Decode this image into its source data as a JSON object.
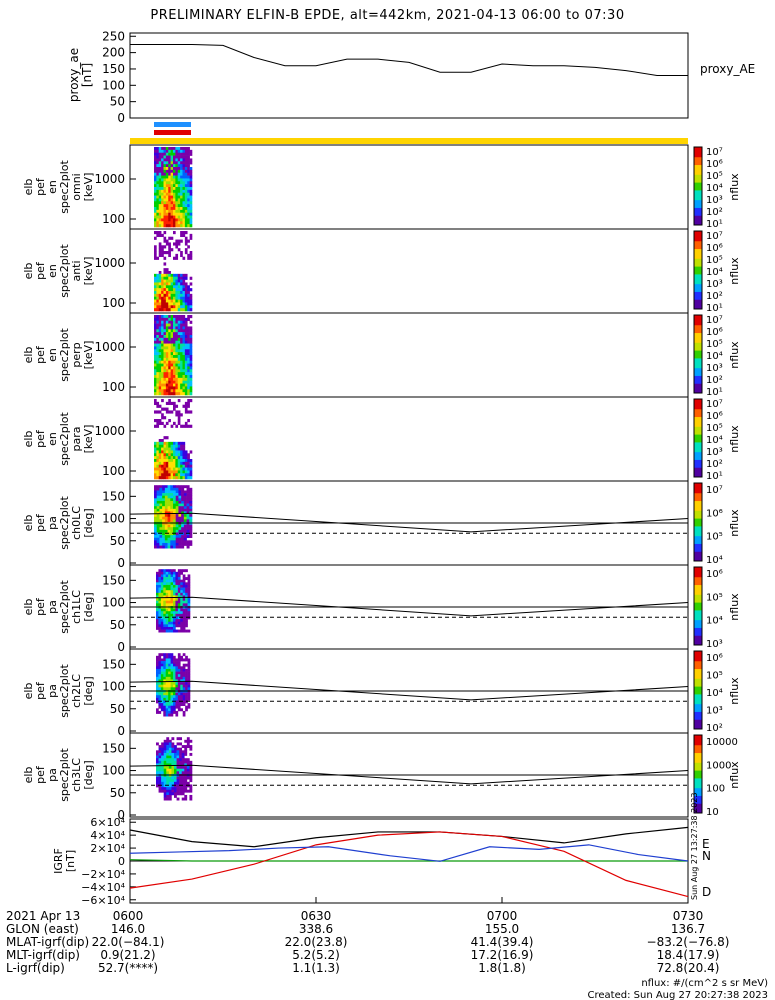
{
  "title": "PRELIMINARY ELFIN-B EPDE, alt=442km, 2021-04-13 06:00 to 07:30",
  "ae_panel": {
    "ylabel": "proxy_ae\n[nT]",
    "legend": "proxy_AE",
    "yticks": [
      "250",
      "200",
      "150",
      "100",
      "50",
      "0"
    ],
    "ylim": [
      0,
      260
    ]
  },
  "spec_panels": [
    {
      "ylabel": "elb\npef\nen\nspec2plot\nomni\n[keV]",
      "yticks": [
        "1000",
        "100"
      ],
      "cbar_ticks": [
        "10⁷",
        "10⁶",
        "10⁵",
        "10⁴",
        "10³",
        "10²",
        "10¹"
      ],
      "cbar_label": "nflux"
    },
    {
      "ylabel": "elb\npef\nen\nspec2plot\nanti\n[keV]",
      "yticks": [
        "1000",
        "100"
      ],
      "cbar_ticks": [
        "10⁷",
        "10⁶",
        "10⁵",
        "10⁴",
        "10³",
        "10²",
        "10¹"
      ],
      "cbar_label": "nflux"
    },
    {
      "ylabel": "elb\npef\nen\nspec2plot\nperp\n[keV]",
      "yticks": [
        "1000",
        "100"
      ],
      "cbar_ticks": [
        "10⁷",
        "10⁶",
        "10⁵",
        "10⁴",
        "10³",
        "10²",
        "10¹"
      ],
      "cbar_label": "nflux"
    },
    {
      "ylabel": "elb\npef\nen\nspec2plot\npara\n[keV]",
      "yticks": [
        "1000",
        "100"
      ],
      "cbar_ticks": [
        "10⁷",
        "10⁶",
        "10⁵",
        "10⁴",
        "10³",
        "10²",
        "10¹"
      ],
      "cbar_label": "nflux"
    }
  ],
  "pa_panels": [
    {
      "ylabel": "elb\npef\npa\nspec2plot\nch0LC\n[deg]",
      "yticks": [
        "150",
        "100",
        "50",
        "0"
      ],
      "cbar_ticks": [
        "10⁷",
        "10⁶",
        "10⁵",
        "10⁴"
      ],
      "cbar_label": "nflux"
    },
    {
      "ylabel": "elb\npef\npa\nspec2plot\nch1LC\n[deg]",
      "yticks": [
        "150",
        "100",
        "50",
        "0"
      ],
      "cbar_ticks": [
        "10⁶",
        "10⁵",
        "10⁴",
        "10³"
      ],
      "cbar_label": "nflux"
    },
    {
      "ylabel": "elb\npef\npa\nspec2plot\nch2LC\n[deg]",
      "yticks": [
        "150",
        "100",
        "50",
        "0"
      ],
      "cbar_ticks": [
        "10⁶",
        "10⁵",
        "10⁴",
        "10³",
        "10²"
      ],
      "cbar_label": "nflux"
    },
    {
      "ylabel": "elb\npef\npa\nspec2plot\nch3LC\n[deg]",
      "yticks": [
        "150",
        "100",
        "50",
        "0"
      ],
      "cbar_ticks": [
        "10000",
        "1000",
        "100",
        "10"
      ],
      "cbar_label": "nflux"
    }
  ],
  "igrf_panel": {
    "ylabel": "IGRF\n[nT]",
    "yticks": [
      "6×10⁴",
      "4×10⁴",
      "2×10⁴",
      "0",
      "−2×10⁴",
      "−4×10⁴",
      "−6×10⁴"
    ],
    "legend": [
      "E",
      "N",
      "D"
    ],
    "side_text": "Sun Aug 27 13:27:38 2023"
  },
  "footer": {
    "rows": [
      {
        "label": "2021 Apr 13",
        "values": [
          "0600",
          "0630",
          "0700",
          "0730"
        ]
      },
      {
        "label": "GLON (east)",
        "values": [
          "146.0",
          "338.6",
          "155.0",
          "136.7"
        ]
      },
      {
        "label": "MLAT-igrf(dip)",
        "values": [
          "22.0(−84.1)",
          "22.0(23.8)",
          "41.4(39.4)",
          "−83.2(−76.8)"
        ]
      },
      {
        "label": "MLT-igrf(dip)",
        "values": [
          "0.9(21.2)",
          "5.2(5.2)",
          "17.2(16.9)",
          "18.4(17.9)"
        ]
      },
      {
        "label": "L-igrf(dip)",
        "values": [
          "52.7(****)",
          "1.1(1.3)",
          "1.8(1.8)",
          "72.8(20.4)"
        ]
      }
    ],
    "unit_note": "nflux: #/(cm^2 s sr MeV)",
    "created": "Created: Sun Aug 27 20:27:38 2023"
  },
  "colors": {
    "yellow": "#ffd400",
    "blue": "#1e90ff",
    "red": "#e00000",
    "igrf_E": "#000000",
    "igrf_N": "#0a9a0a",
    "igrf_D": "#e00000",
    "igrf_blue": "#1f3fd0"
  },
  "chart_data": {
    "type": "line",
    "x_range": [
      "06:00",
      "07:30"
    ],
    "proxy_ae": {
      "x_min": [
        0,
        10,
        15,
        20,
        25,
        30,
        35,
        40,
        45,
        50,
        55,
        60,
        65,
        70,
        75,
        80,
        85,
        90
      ],
      "values": [
        225,
        225,
        222,
        185,
        160,
        160,
        180,
        180,
        170,
        140,
        140,
        165,
        160,
        160,
        155,
        145,
        130,
        130
      ]
    },
    "pa_loss_cone_solid": {
      "x_min": [
        0,
        10,
        55,
        90
      ],
      "values": [
        110,
        112,
        70,
        100
      ]
    },
    "igrf": {
      "x_min": [
        0,
        10,
        20,
        30,
        40,
        50,
        60,
        70,
        80,
        90
      ],
      "E": [
        48000,
        30000,
        22000,
        36000,
        45000,
        45000,
        38000,
        28000,
        42000,
        52000
      ],
      "N": [
        2000,
        0,
        0,
        0,
        0,
        0,
        0,
        0,
        0,
        0
      ],
      "D": [
        -42000,
        -28000,
        -5000,
        25000,
        40000,
        45000,
        38000,
        15000,
        -30000,
        -55000
      ]
    }
  }
}
